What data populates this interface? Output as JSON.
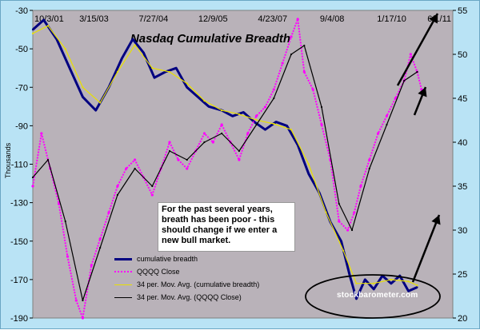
{
  "chart_data": {
    "type": "line",
    "title": "Nasdaq Cumulative Breadth",
    "ylabel": "Thousands",
    "x_tick_labels": [
      "10/3/01",
      "3/15/03",
      "7/27/04",
      "12/9/05",
      "4/23/07",
      "9/4/08",
      "1/17/10",
      "6/1/11"
    ],
    "ylim_left": [
      -190,
      -30
    ],
    "yticks_left": [
      -30,
      -50,
      -70,
      -90,
      -110,
      -130,
      -150,
      -170,
      -190
    ],
    "ylim_right": [
      20,
      55
    ],
    "yticks_right": [
      55,
      50,
      45,
      40,
      35,
      30,
      25,
      20
    ],
    "grid": false,
    "legend_placement": "lower-left",
    "series": [
      {
        "name": "cumulative breadth",
        "axis": "left",
        "color": "#000080",
        "x": [
          2001.75,
          2002.0,
          2002.3,
          2002.6,
          2002.9,
          2003.2,
          2003.5,
          2003.8,
          2004.05,
          2004.3,
          2004.55,
          2004.8,
          2005.05,
          2005.3,
          2005.55,
          2005.8,
          2006.1,
          2006.35,
          2006.6,
          2006.85,
          2007.1,
          2007.35,
          2007.6,
          2007.85,
          2008.1,
          2008.35,
          2008.6,
          2008.85,
          2009.05,
          2009.2,
          2009.4,
          2009.6,
          2009.8,
          2010.0,
          2010.2,
          2010.4,
          2010.6
        ],
        "values": [
          -40,
          -35,
          -45,
          -60,
          -75,
          -82,
          -70,
          -55,
          -45,
          -52,
          -65,
          -62,
          -60,
          -70,
          -75,
          -80,
          -82,
          -85,
          -83,
          -88,
          -92,
          -88,
          -90,
          -100,
          -115,
          -125,
          -140,
          -150,
          -168,
          -180,
          -170,
          -175,
          -168,
          -172,
          -168,
          -176,
          -174
        ]
      },
      {
        "name": "QQQQ Close",
        "axis": "right",
        "color": "#ff00ff",
        "x": [
          2001.75,
          2001.95,
          2002.15,
          2002.35,
          2002.55,
          2002.75,
          2002.9,
          2003.1,
          2003.3,
          2003.5,
          2003.7,
          2003.9,
          2004.1,
          2004.3,
          2004.5,
          2004.7,
          2004.9,
          2005.1,
          2005.3,
          2005.5,
          2005.7,
          2005.9,
          2006.1,
          2006.3,
          2006.5,
          2006.7,
          2006.9,
          2007.1,
          2007.3,
          2007.5,
          2007.7,
          2007.85,
          2008.0,
          2008.2,
          2008.4,
          2008.6,
          2008.8,
          2009.0,
          2009.15,
          2009.3,
          2009.5,
          2009.7,
          2009.9,
          2010.1,
          2010.3,
          2010.45,
          2010.6,
          2010.7
        ],
        "values": [
          35,
          41,
          37,
          33,
          27,
          22,
          20,
          26,
          29,
          32,
          35,
          37,
          38,
          36,
          34,
          37,
          40,
          38,
          37,
          39,
          41,
          40,
          42,
          40,
          38,
          41,
          43,
          44,
          46,
          49,
          52,
          54,
          48,
          46,
          42,
          38,
          31,
          30,
          32,
          35,
          38,
          41,
          43,
          45,
          47,
          50,
          48,
          46
        ]
      },
      {
        "name": "34 per. Mov. Avg. (cumulative breadth)",
        "axis": "left",
        "color": "#e8e000",
        "x": [
          2001.75,
          2002.1,
          2002.5,
          2002.9,
          2003.3,
          2003.7,
          2004.1,
          2004.5,
          2004.9,
          2005.3,
          2005.7,
          2006.1,
          2006.5,
          2006.9,
          2007.3,
          2007.7,
          2008.1,
          2008.5,
          2008.9,
          2009.2,
          2009.6,
          2010.0,
          2010.4,
          2010.6
        ],
        "values": [
          -42,
          -38,
          -50,
          -70,
          -78,
          -62,
          -48,
          -60,
          -62,
          -68,
          -77,
          -82,
          -84,
          -87,
          -89,
          -92,
          -110,
          -135,
          -155,
          -172,
          -172,
          -170,
          -171,
          -173
        ]
      },
      {
        "name": "34 per. Mov. Avg. (QQQQ Close)",
        "axis": "right",
        "color": "#000000",
        "x": [
          2001.75,
          2002.1,
          2002.5,
          2002.9,
          2003.3,
          2003.7,
          2004.1,
          2004.5,
          2004.9,
          2005.3,
          2005.7,
          2006.1,
          2006.5,
          2006.9,
          2007.3,
          2007.7,
          2008.0,
          2008.4,
          2008.8,
          2009.1,
          2009.5,
          2009.9,
          2010.3,
          2010.6
        ],
        "values": [
          36,
          38,
          31,
          22,
          28,
          34,
          37,
          35,
          39,
          38,
          40,
          41,
          39,
          42,
          45,
          50,
          51,
          44,
          33,
          30,
          37,
          42,
          47,
          48
        ]
      }
    ]
  },
  "note_text": "For the past several years, breath has been poor - this should change if we enter a new bull market.",
  "watermark": "stockbarometer.com"
}
